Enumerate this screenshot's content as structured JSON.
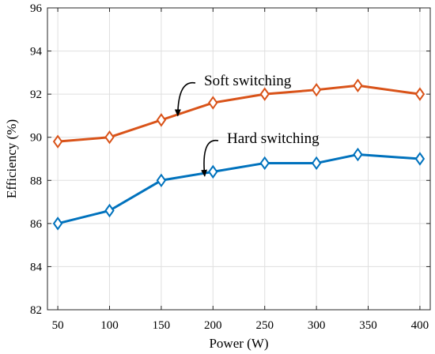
{
  "chart_data": {
    "type": "line",
    "xlabel": "Power (W)",
    "ylabel": "Efficiency (%)",
    "xlim": [
      40,
      410
    ],
    "ylim": [
      82,
      96
    ],
    "xticks": [
      50,
      100,
      150,
      200,
      250,
      300,
      350,
      400
    ],
    "yticks": [
      82,
      84,
      86,
      88,
      90,
      92,
      94,
      96
    ],
    "grid": true,
    "series": [
      {
        "name": "Soft switching",
        "color": "#D95319",
        "marker": "diamond",
        "x": [
          50,
          100,
          150,
          200,
          250,
          300,
          340,
          400
        ],
        "y": [
          89.8,
          90.0,
          90.8,
          91.6,
          92.0,
          92.2,
          92.4,
          92.0
        ]
      },
      {
        "name": "Hard switching",
        "color": "#0072BD",
        "marker": "diamond",
        "x": [
          50,
          100,
          150,
          200,
          250,
          300,
          340,
          400
        ],
        "y": [
          86.0,
          86.6,
          88.0,
          88.4,
          88.8,
          88.8,
          89.2,
          89.0
        ]
      }
    ],
    "annotations": [
      {
        "text": "Soft switching",
        "series": 0,
        "arrow_to": [
          166,
          90.85
        ]
      },
      {
        "text": "Hard switching",
        "series": 1,
        "arrow_to": [
          192,
          88.05
        ]
      }
    ]
  }
}
